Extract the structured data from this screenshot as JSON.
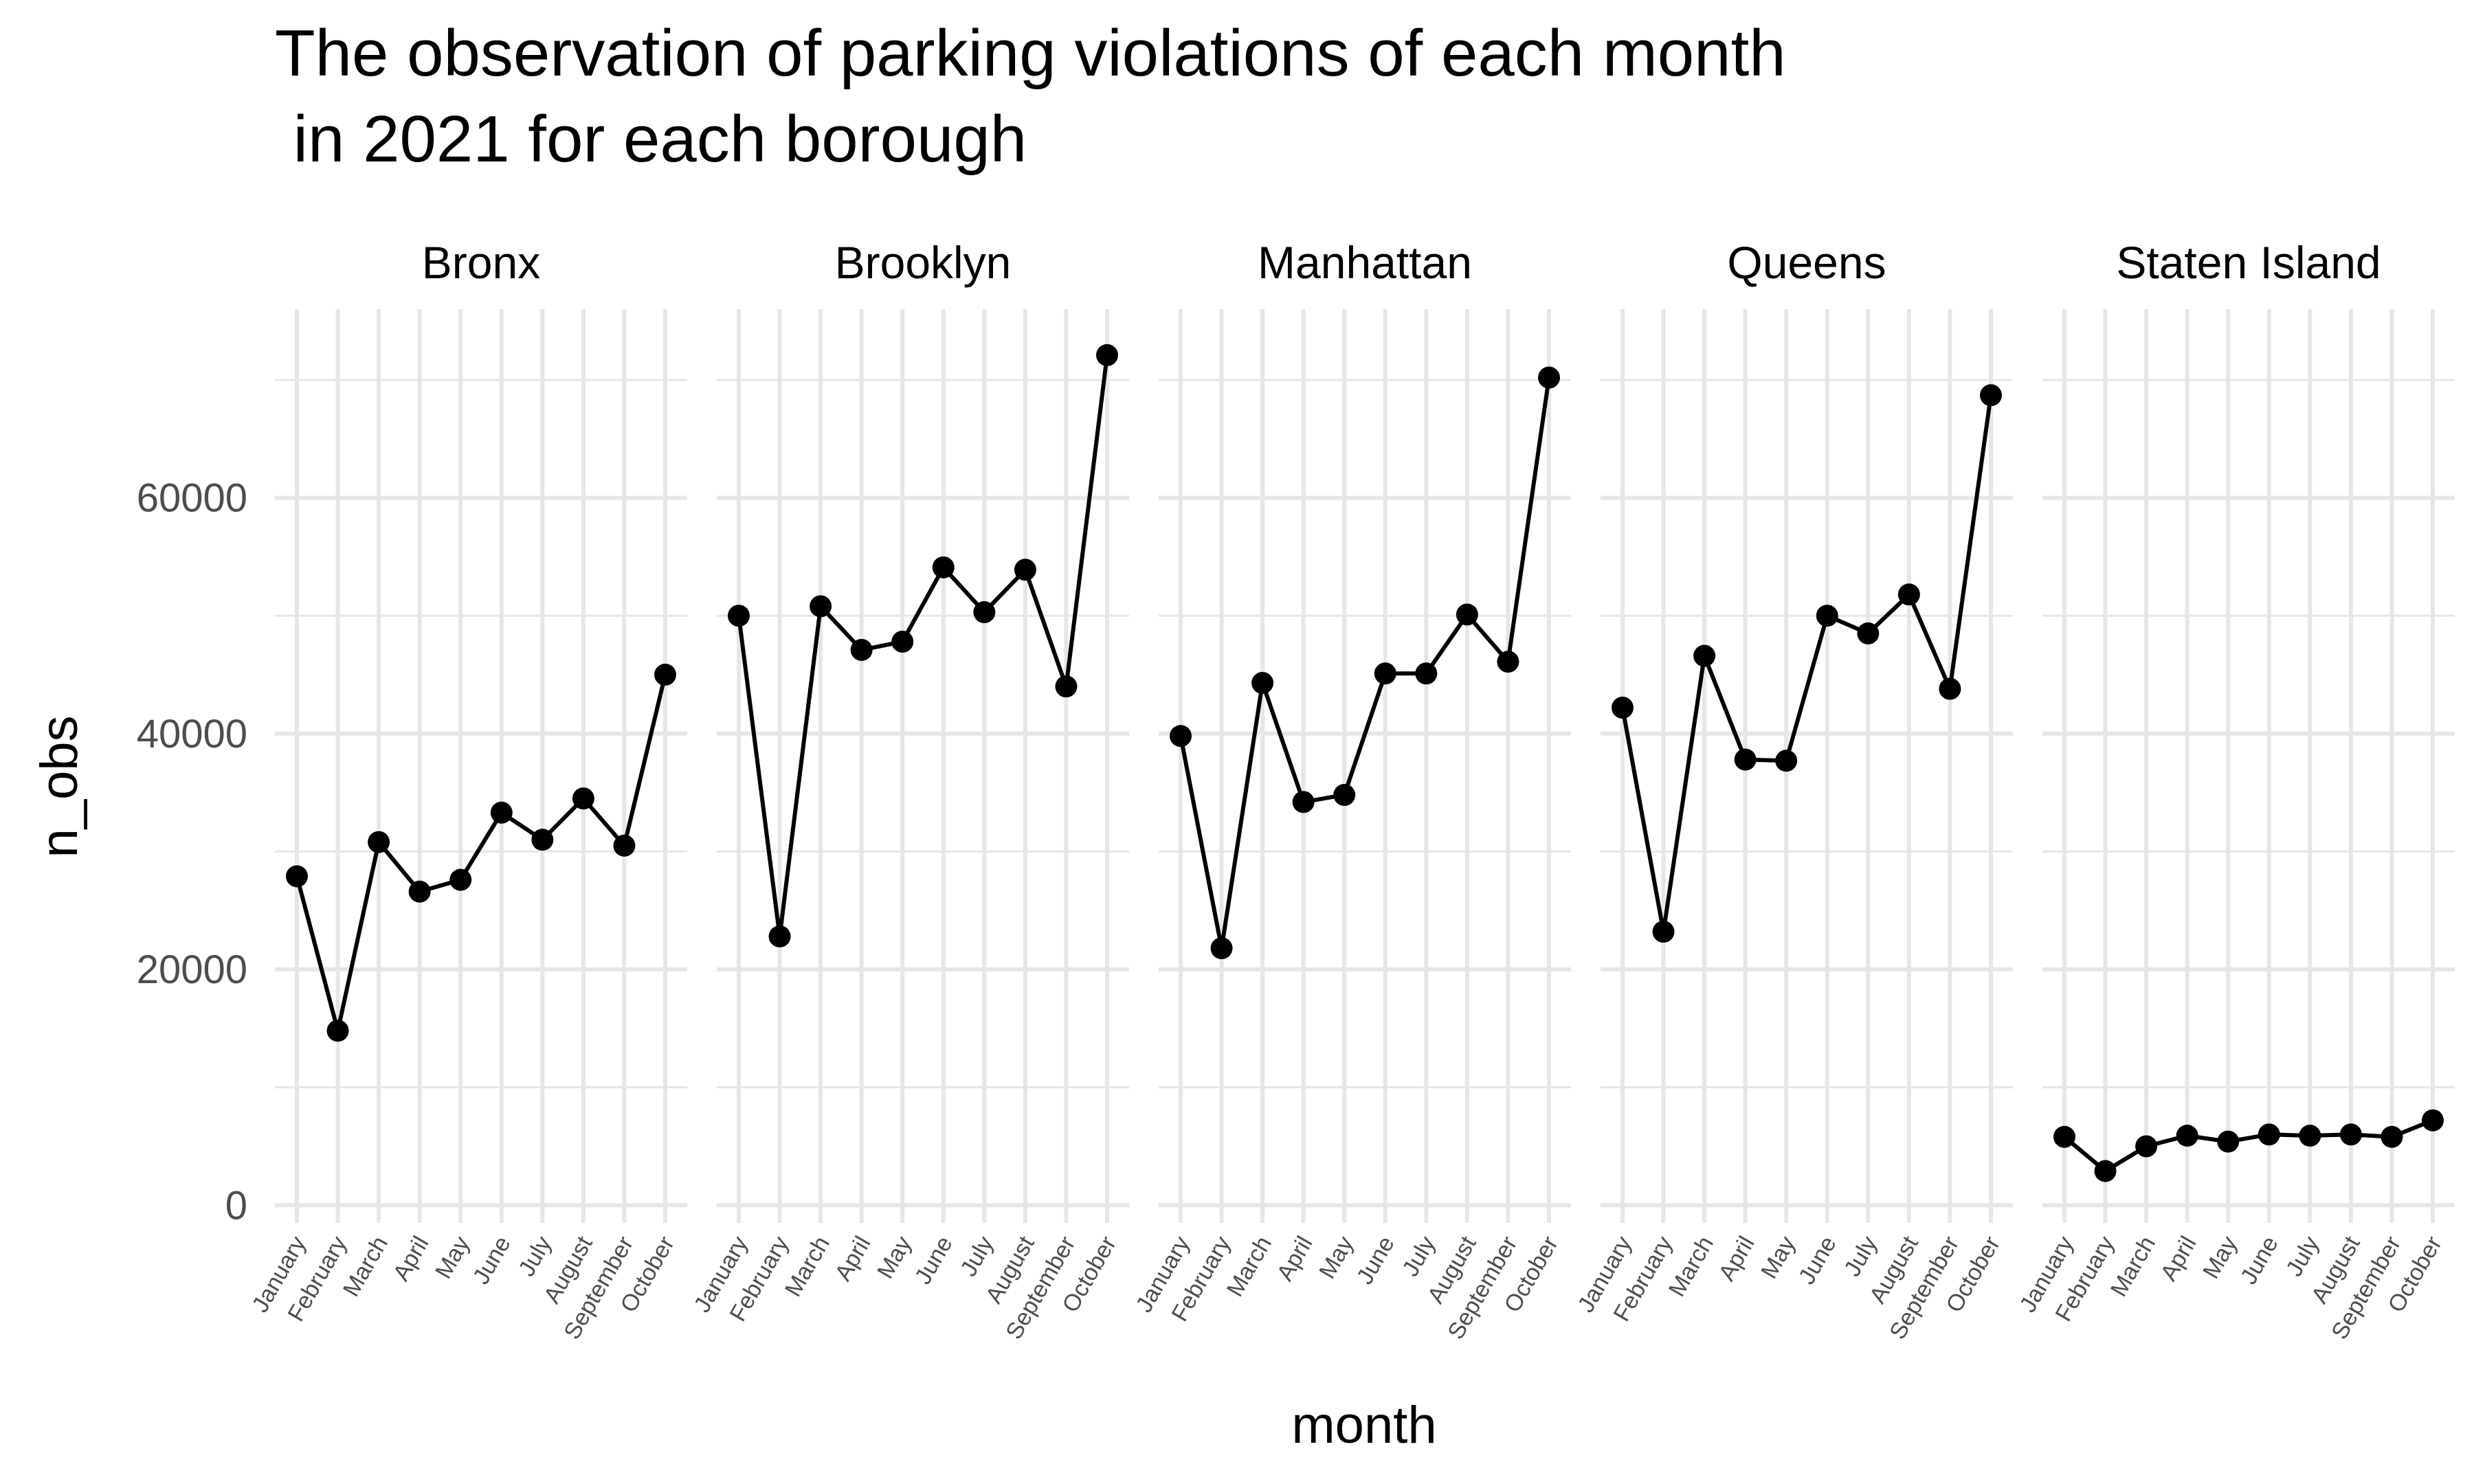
{
  "chart_data": {
    "type": "line",
    "title_lines": [
      "The observation of parking violations of each month",
      " in 2021 for each borough"
    ],
    "xlabel": "month",
    "ylabel": "n_obs",
    "ylim": [
      -1500,
      76000
    ],
    "yticks": [
      0,
      20000,
      40000,
      60000
    ],
    "y_minor_ticks": [
      10000,
      30000,
      50000,
      70000
    ],
    "grid": true,
    "legend": "none",
    "categories": [
      "January",
      "February",
      "March",
      "April",
      "May",
      "June",
      "July",
      "August",
      "September",
      "October"
    ],
    "series": [
      {
        "name": "Bronx",
        "values": [
          27900,
          14800,
          30800,
          26600,
          27600,
          33300,
          31000,
          34500,
          30500,
          45000
        ]
      },
      {
        "name": "Brooklyn",
        "values": [
          50000,
          22800,
          50800,
          47100,
          47800,
          54100,
          50300,
          53900,
          44000,
          72100
        ]
      },
      {
        "name": "Manhattan",
        "values": [
          39800,
          21800,
          44300,
          34200,
          34800,
          45100,
          45100,
          50100,
          46100,
          70200
        ]
      },
      {
        "name": "Queens",
        "values": [
          42200,
          23200,
          46600,
          37800,
          37700,
          50000,
          48500,
          51800,
          43800,
          68700
        ]
      },
      {
        "name": "Staten Island",
        "values": [
          5800,
          2900,
          5000,
          5900,
          5400,
          6000,
          5900,
          6000,
          5800,
          7200
        ]
      }
    ],
    "colors": {
      "line": "#000000",
      "grid": "#e6e6e6",
      "text": "#000000",
      "axis_text": "#4d4d4d"
    }
  }
}
